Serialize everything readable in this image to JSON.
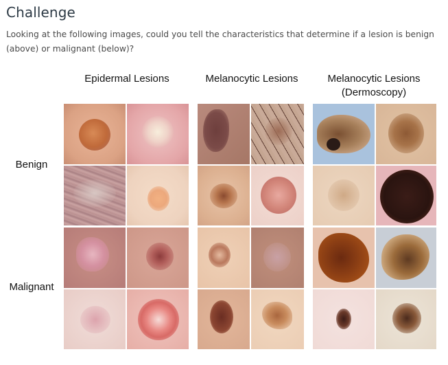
{
  "heading": "Challenge",
  "description": "Looking at the following images, could you tell the characteristics that determine if a lesion is benign (above) or malignant (below)?",
  "figure": {
    "columns": [
      {
        "label_line1": "Epidermal Lesions",
        "label_line2": ""
      },
      {
        "label_line1": "Melanocytic Lesions",
        "label_line2": ""
      },
      {
        "label_line1": "Melanocytic Lesions",
        "label_line2": "(Dermoscopy)"
      }
    ],
    "rows": [
      {
        "label": "Benign"
      },
      {
        "label": "Malignant"
      }
    ]
  }
}
